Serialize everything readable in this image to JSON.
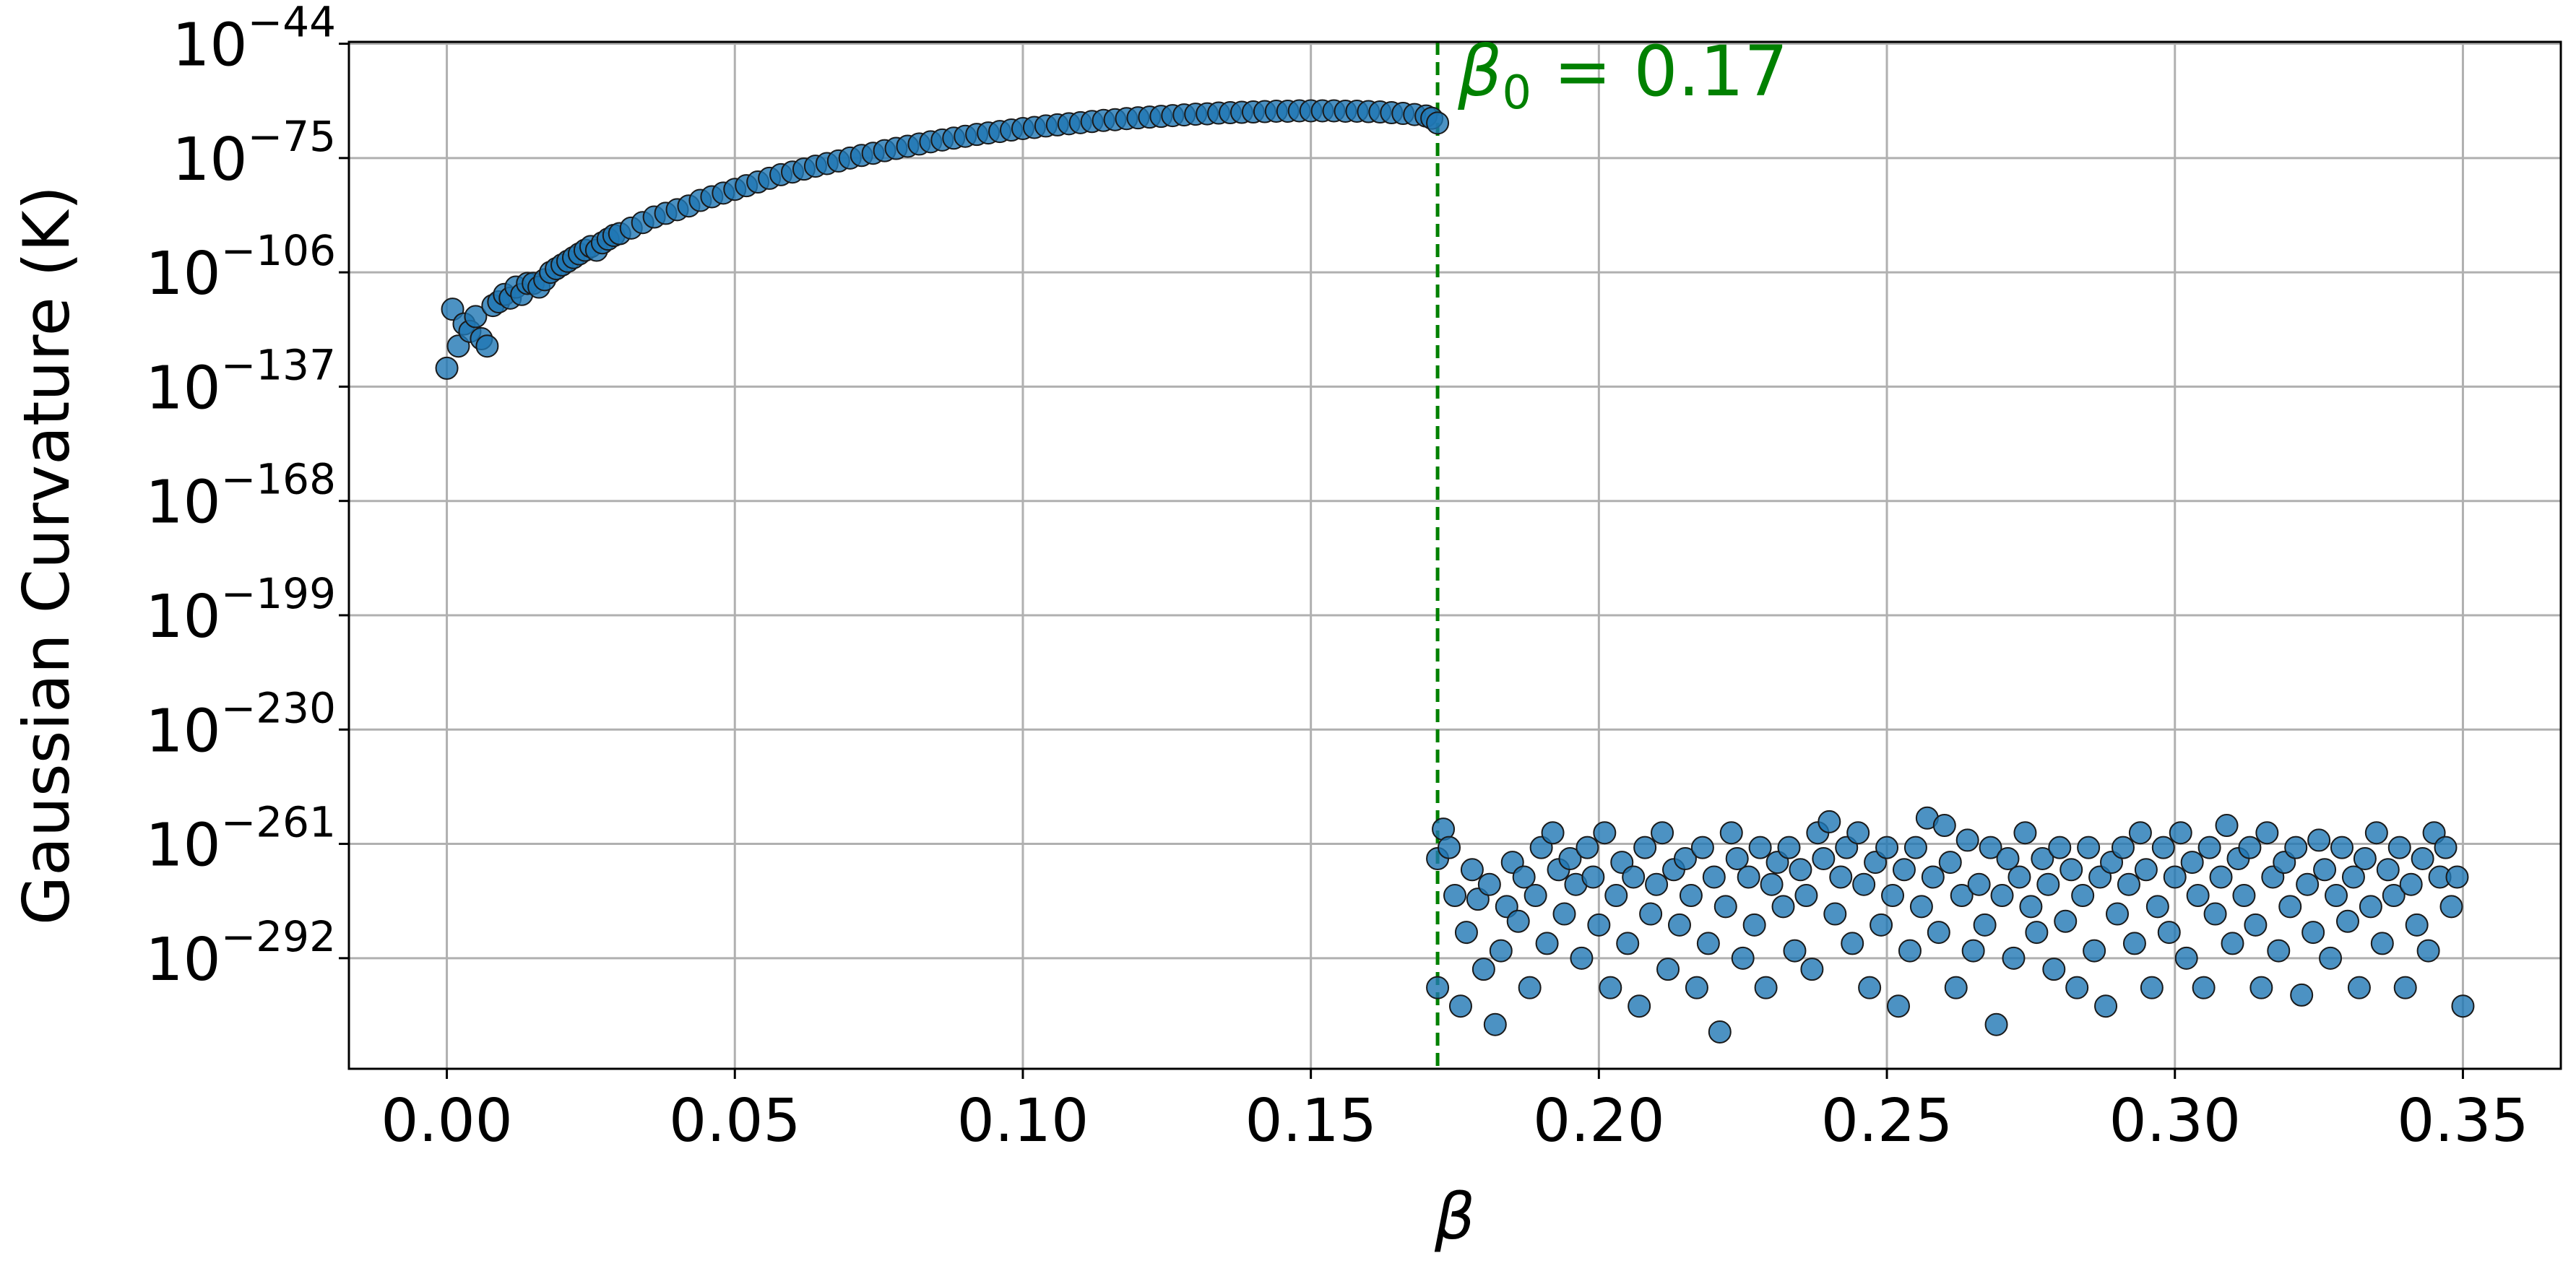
{
  "chart_data": {
    "type": "scatter",
    "title": "",
    "xlabel": "β",
    "ylabel": "Gaussian Curvature (K)",
    "xlim": [
      -0.017,
      0.367
    ],
    "ylim_log10": [
      -322,
      -43.5
    ],
    "yscale": "log",
    "grid": true,
    "x_ticks": [
      "0.00",
      "0.05",
      "0.10",
      "0.15",
      "0.20",
      "0.25",
      "0.30",
      "0.35"
    ],
    "y_ticks": [
      {
        "base": "10",
        "exp": "−44",
        "log10": -44
      },
      {
        "base": "10",
        "exp": "−75",
        "log10": -75
      },
      {
        "base": "10",
        "exp": "−106",
        "log10": -106
      },
      {
        "base": "10",
        "exp": "−137",
        "log10": -137
      },
      {
        "base": "10",
        "exp": "−168",
        "log10": -168
      },
      {
        "base": "10",
        "exp": "−199",
        "log10": -199
      },
      {
        "base": "10",
        "exp": "−230",
        "log10": -230
      },
      {
        "base": "10",
        "exp": "−261",
        "log10": -261
      },
      {
        "base": "10",
        "exp": "−292",
        "log10": -292
      }
    ],
    "point_color": "#1f77b4",
    "point_edge_color": "#1a1a1a",
    "vline": {
      "x": 0.172,
      "color": "#008000",
      "style": "dashed"
    },
    "annotation": {
      "symbol": "β",
      "subscript": "0",
      "text": " = 0.17",
      "color": "#008000"
    },
    "series": [
      {
        "description_points": "log10(K) vs β, two regimes",
        "points": [
          [
            0.0,
            -132
          ],
          [
            0.001,
            -116
          ],
          [
            0.002,
            -126
          ],
          [
            0.003,
            -120
          ],
          [
            0.004,
            -122
          ],
          [
            0.005,
            -118
          ],
          [
            0.006,
            -124
          ],
          [
            0.007,
            -126
          ],
          [
            0.008,
            -115
          ],
          [
            0.009,
            -114
          ],
          [
            0.01,
            -112
          ],
          [
            0.011,
            -113
          ],
          [
            0.012,
            -110
          ],
          [
            0.013,
            -112
          ],
          [
            0.014,
            -109
          ],
          [
            0.015,
            -109
          ],
          [
            0.016,
            -110
          ],
          [
            0.017,
            -108
          ],
          [
            0.018,
            -106
          ],
          [
            0.019,
            -105
          ],
          [
            0.02,
            -104
          ],
          [
            0.021,
            -103
          ],
          [
            0.022,
            -102
          ],
          [
            0.023,
            -101
          ],
          [
            0.024,
            -100
          ],
          [
            0.025,
            -99
          ],
          [
            0.026,
            -100
          ],
          [
            0.027,
            -98
          ],
          [
            0.028,
            -97
          ],
          [
            0.029,
            -96
          ],
          [
            0.03,
            -95.5
          ],
          [
            0.032,
            -94
          ],
          [
            0.034,
            -92.5
          ],
          [
            0.036,
            -91
          ],
          [
            0.038,
            -90
          ],
          [
            0.04,
            -89
          ],
          [
            0.042,
            -88
          ],
          [
            0.044,
            -86.5
          ],
          [
            0.046,
            -85.5
          ],
          [
            0.048,
            -84.5
          ],
          [
            0.05,
            -83.5
          ],
          [
            0.052,
            -82.5
          ],
          [
            0.054,
            -81.5
          ],
          [
            0.056,
            -80.5
          ],
          [
            0.058,
            -79.5
          ],
          [
            0.06,
            -78.8
          ],
          [
            0.062,
            -78
          ],
          [
            0.064,
            -77.2
          ],
          [
            0.066,
            -76.5
          ],
          [
            0.068,
            -75.8
          ],
          [
            0.07,
            -75
          ],
          [
            0.072,
            -74.3
          ],
          [
            0.074,
            -73.7
          ],
          [
            0.076,
            -73
          ],
          [
            0.078,
            -72.4
          ],
          [
            0.08,
            -71.8
          ],
          [
            0.082,
            -71.2
          ],
          [
            0.084,
            -70.6
          ],
          [
            0.086,
            -70.1
          ],
          [
            0.088,
            -69.6
          ],
          [
            0.09,
            -69.1
          ],
          [
            0.092,
            -68.6
          ],
          [
            0.094,
            -68.2
          ],
          [
            0.096,
            -67.8
          ],
          [
            0.098,
            -67.4
          ],
          [
            0.1,
            -67
          ],
          [
            0.102,
            -66.7
          ],
          [
            0.104,
            -66.3
          ],
          [
            0.106,
            -66
          ],
          [
            0.108,
            -65.7
          ],
          [
            0.11,
            -65.4
          ],
          [
            0.112,
            -65.1
          ],
          [
            0.114,
            -64.8
          ],
          [
            0.116,
            -64.6
          ],
          [
            0.118,
            -64.3
          ],
          [
            0.12,
            -64.1
          ],
          [
            0.122,
            -63.9
          ],
          [
            0.124,
            -63.7
          ],
          [
            0.126,
            -63.5
          ],
          [
            0.128,
            -63.3
          ],
          [
            0.13,
            -63.1
          ],
          [
            0.132,
            -63
          ],
          [
            0.134,
            -62.8
          ],
          [
            0.136,
            -62.7
          ],
          [
            0.138,
            -62.6
          ],
          [
            0.14,
            -62.5
          ],
          [
            0.142,
            -62.4
          ],
          [
            0.144,
            -62.3
          ],
          [
            0.146,
            -62.3
          ],
          [
            0.148,
            -62.2
          ],
          [
            0.15,
            -62.2
          ],
          [
            0.152,
            -62.2
          ],
          [
            0.154,
            -62.2
          ],
          [
            0.156,
            -62.3
          ],
          [
            0.158,
            -62.3
          ],
          [
            0.16,
            -62.4
          ],
          [
            0.162,
            -62.5
          ],
          [
            0.164,
            -62.7
          ],
          [
            0.166,
            -62.9
          ],
          [
            0.168,
            -63.2
          ],
          [
            0.17,
            -63.6
          ],
          [
            0.171,
            -64.2
          ],
          [
            0.172,
            -65.5
          ],
          [
            0.172,
            -265
          ],
          [
            0.172,
            -300
          ],
          [
            0.173,
            -257
          ],
          [
            0.174,
            -262
          ],
          [
            0.175,
            -275
          ],
          [
            0.176,
            -305
          ],
          [
            0.177,
            -285
          ],
          [
            0.178,
            -268
          ],
          [
            0.179,
            -276
          ],
          [
            0.18,
            -295
          ],
          [
            0.181,
            -272
          ],
          [
            0.182,
            -310
          ],
          [
            0.183,
            -290
          ],
          [
            0.184,
            -278
          ],
          [
            0.185,
            -266
          ],
          [
            0.186,
            -282
          ],
          [
            0.187,
            -270
          ],
          [
            0.188,
            -300
          ],
          [
            0.189,
            -275
          ],
          [
            0.19,
            -262
          ],
          [
            0.191,
            -288
          ],
          [
            0.192,
            -258
          ],
          [
            0.193,
            -268
          ],
          [
            0.194,
            -280
          ],
          [
            0.195,
            -265
          ],
          [
            0.196,
            -272
          ],
          [
            0.197,
            -292
          ],
          [
            0.198,
            -262
          ],
          [
            0.199,
            -270
          ],
          [
            0.2,
            -283
          ],
          [
            0.201,
            -258
          ],
          [
            0.202,
            -300
          ],
          [
            0.203,
            -275
          ],
          [
            0.204,
            -266
          ],
          [
            0.205,
            -288
          ],
          [
            0.206,
            -270
          ],
          [
            0.207,
            -305
          ],
          [
            0.208,
            -262
          ],
          [
            0.209,
            -280
          ],
          [
            0.21,
            -272
          ],
          [
            0.211,
            -258
          ],
          [
            0.212,
            -295
          ],
          [
            0.213,
            -268
          ],
          [
            0.214,
            -283
          ],
          [
            0.215,
            -265
          ],
          [
            0.216,
            -275
          ],
          [
            0.217,
            -300
          ],
          [
            0.218,
            -262
          ],
          [
            0.219,
            -288
          ],
          [
            0.22,
            -270
          ],
          [
            0.221,
            -312
          ],
          [
            0.222,
            -278
          ],
          [
            0.223,
            -258
          ],
          [
            0.224,
            -265
          ],
          [
            0.225,
            -292
          ],
          [
            0.226,
            -270
          ],
          [
            0.227,
            -283
          ],
          [
            0.228,
            -262
          ],
          [
            0.229,
            -300
          ],
          [
            0.23,
            -272
          ],
          [
            0.231,
            -266
          ],
          [
            0.232,
            -278
          ],
          [
            0.233,
            -262
          ],
          [
            0.234,
            -290
          ],
          [
            0.235,
            -268
          ],
          [
            0.236,
            -275
          ],
          [
            0.237,
            -295
          ],
          [
            0.238,
            -258
          ],
          [
            0.239,
            -265
          ],
          [
            0.24,
            -255
          ],
          [
            0.241,
            -280
          ],
          [
            0.242,
            -270
          ],
          [
            0.243,
            -262
          ],
          [
            0.244,
            -288
          ],
          [
            0.245,
            -258
          ],
          [
            0.246,
            -272
          ],
          [
            0.247,
            -300
          ],
          [
            0.248,
            -266
          ],
          [
            0.249,
            -283
          ],
          [
            0.25,
            -262
          ],
          [
            0.251,
            -275
          ],
          [
            0.252,
            -305
          ],
          [
            0.253,
            -268
          ],
          [
            0.254,
            -290
          ],
          [
            0.255,
            -262
          ],
          [
            0.256,
            -278
          ],
          [
            0.257,
            -254
          ],
          [
            0.258,
            -270
          ],
          [
            0.259,
            -285
          ],
          [
            0.26,
            -256
          ],
          [
            0.261,
            -266
          ],
          [
            0.262,
            -300
          ],
          [
            0.263,
            -275
          ],
          [
            0.264,
            -260
          ],
          [
            0.265,
            -290
          ],
          [
            0.266,
            -272
          ],
          [
            0.267,
            -283
          ],
          [
            0.268,
            -262
          ],
          [
            0.269,
            -310
          ],
          [
            0.27,
            -275
          ],
          [
            0.271,
            -265
          ],
          [
            0.272,
            -292
          ],
          [
            0.273,
            -270
          ],
          [
            0.274,
            -258
          ],
          [
            0.275,
            -278
          ],
          [
            0.276,
            -285
          ],
          [
            0.277,
            -265
          ],
          [
            0.278,
            -272
          ],
          [
            0.279,
            -295
          ],
          [
            0.28,
            -262
          ],
          [
            0.281,
            -282
          ],
          [
            0.282,
            -268
          ],
          [
            0.283,
            -300
          ],
          [
            0.284,
            -275
          ],
          [
            0.285,
            -262
          ],
          [
            0.286,
            -290
          ],
          [
            0.287,
            -270
          ],
          [
            0.288,
            -305
          ],
          [
            0.289,
            -266
          ],
          [
            0.29,
            -280
          ],
          [
            0.291,
            -262
          ],
          [
            0.292,
            -272
          ],
          [
            0.293,
            -288
          ],
          [
            0.294,
            -258
          ],
          [
            0.295,
            -268
          ],
          [
            0.296,
            -300
          ],
          [
            0.297,
            -278
          ],
          [
            0.298,
            -262
          ],
          [
            0.299,
            -285
          ],
          [
            0.3,
            -270
          ],
          [
            0.301,
            -258
          ],
          [
            0.302,
            -292
          ],
          [
            0.303,
            -266
          ],
          [
            0.304,
            -275
          ],
          [
            0.305,
            -300
          ],
          [
            0.306,
            -262
          ],
          [
            0.307,
            -280
          ],
          [
            0.308,
            -270
          ],
          [
            0.309,
            -256
          ],
          [
            0.31,
            -288
          ],
          [
            0.311,
            -265
          ],
          [
            0.312,
            -275
          ],
          [
            0.313,
            -262
          ],
          [
            0.314,
            -283
          ],
          [
            0.315,
            -300
          ],
          [
            0.316,
            -258
          ],
          [
            0.317,
            -270
          ],
          [
            0.318,
            -290
          ],
          [
            0.319,
            -266
          ],
          [
            0.32,
            -278
          ],
          [
            0.321,
            -262
          ],
          [
            0.322,
            -302
          ],
          [
            0.323,
            -272
          ],
          [
            0.324,
            -285
          ],
          [
            0.325,
            -260
          ],
          [
            0.326,
            -268
          ],
          [
            0.327,
            -292
          ],
          [
            0.328,
            -275
          ],
          [
            0.329,
            -262
          ],
          [
            0.33,
            -282
          ],
          [
            0.331,
            -270
          ],
          [
            0.332,
            -300
          ],
          [
            0.333,
            -265
          ],
          [
            0.334,
            -278
          ],
          [
            0.335,
            -258
          ],
          [
            0.336,
            -288
          ],
          [
            0.337,
            -268
          ],
          [
            0.338,
            -275
          ],
          [
            0.339,
            -262
          ],
          [
            0.34,
            -300
          ],
          [
            0.341,
            -272
          ],
          [
            0.342,
            -283
          ],
          [
            0.343,
            -265
          ],
          [
            0.344,
            -290
          ],
          [
            0.345,
            -258
          ],
          [
            0.346,
            -270
          ],
          [
            0.347,
            -262
          ],
          [
            0.348,
            -278
          ],
          [
            0.349,
            -270
          ],
          [
            0.35,
            -305
          ]
        ]
      }
    ]
  }
}
